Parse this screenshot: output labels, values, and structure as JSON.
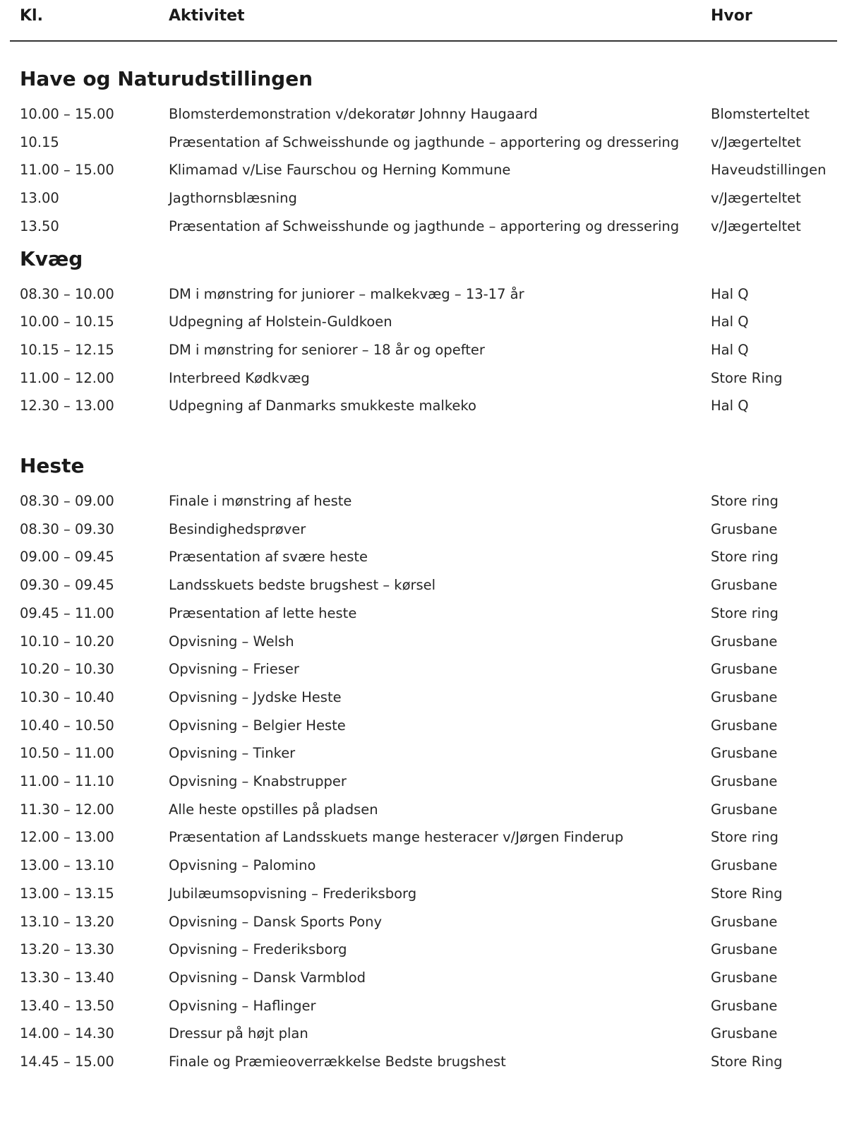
{
  "header": {
    "time": "Kl.",
    "activity": "Aktivitet",
    "where": "Hvor"
  },
  "sections": [
    {
      "title": "Have og Naturudstillingen",
      "rows": [
        {
          "time": "10.00 – 15.00",
          "activity": "Blomsterdemonstration v/dekoratør Johnny Haugaard",
          "where": "Blomsterteltet"
        },
        {
          "time": "10.15",
          "activity": "Præsentation af Schweisshunde og jagthunde – apportering og dressering",
          "where": "v/Jægerteltet"
        },
        {
          "time": "11.00 – 15.00",
          "activity": "Klimamad v/Lise Faurschou og Herning Kommune",
          "where": "Haveudstillingen"
        },
        {
          "time": "13.00",
          "activity": "Jagthornsblæsning",
          "where": "v/Jægerteltet"
        },
        {
          "time": "13.50",
          "activity": "Præsentation af Schweisshunde og jagthunde – apportering og dressering",
          "where": "v/Jægerteltet"
        }
      ]
    },
    {
      "title": "Kvæg",
      "rows": [
        {
          "time": "08.30 – 10.00",
          "activity": "DM i mønstring for juniorer – malkekvæg – 13-17 år",
          "where": "Hal Q"
        },
        {
          "time": "10.00 – 10.15",
          "activity": "Udpegning af Holstein-Guldkoen",
          "where": "Hal Q"
        },
        {
          "time": "10.15 – 12.15",
          "activity": "DM i mønstring for seniorer – 18 år og opefter",
          "where": "Hal Q"
        },
        {
          "time": "11.00 – 12.00",
          "activity": "Interbreed Kødkvæg",
          "where": "Store Ring"
        },
        {
          "time": "12.30 – 13.00",
          "activity": "Udpegning af Danmarks smukkeste malkeko",
          "where": "Hal Q"
        }
      ]
    },
    {
      "title": "Heste",
      "rows": [
        {
          "time": "08.30 – 09.00",
          "activity": "Finale i mønstring af heste",
          "where": "Store ring"
        },
        {
          "time": "08.30 – 09.30",
          "activity": "Besindighedsprøver",
          "where": "Grusbane"
        },
        {
          "time": "09.00 – 09.45",
          "activity": "Præsentation af svære heste",
          "where": "Store ring"
        },
        {
          "time": "09.30 – 09.45",
          "activity": "Landsskuets bedste brugshest – kørsel",
          "where": "Grusbane"
        },
        {
          "time": "09.45 – 11.00",
          "activity": "Præsentation af lette heste",
          "where": "Store ring"
        },
        {
          "time": "10.10 – 10.20",
          "activity": "Opvisning – Welsh",
          "where": "Grusbane"
        },
        {
          "time": "10.20 – 10.30",
          "activity": "Opvisning – Frieser",
          "where": "Grusbane"
        },
        {
          "time": "10.30 – 10.40",
          "activity": "Opvisning – Jydske Heste",
          "where": "Grusbane"
        },
        {
          "time": "10.40 – 10.50",
          "activity": "Opvisning – Belgier Heste",
          "where": "Grusbane"
        },
        {
          "time": "10.50 – 11.00",
          "activity": "Opvisning – Tinker",
          "where": "Grusbane"
        },
        {
          "time": "11.00 – 11.10",
          "activity": "Opvisning – Knabstrupper",
          "where": "Grusbane"
        },
        {
          "time": "11.30 – 12.00",
          "activity": "Alle heste opstilles på pladsen",
          "where": "Grusbane"
        },
        {
          "time": "12.00 – 13.00",
          "activity": "Præsentation af Landsskuets mange hesteracer v/Jørgen Finderup",
          "where": "Store ring"
        },
        {
          "time": "13.00 – 13.10",
          "activity": "Opvisning – Palomino",
          "where": "Grusbane"
        },
        {
          "time": "13.00 – 13.15",
          "activity": "Jubilæumsopvisning – Frederiksborg",
          "where": "Store Ring"
        },
        {
          "time": "13.10 – 13.20",
          "activity": "Opvisning – Dansk Sports Pony",
          "where": "Grusbane"
        },
        {
          "time": "13.20 – 13.30",
          "activity": "Opvisning – Frederiksborg",
          "where": "Grusbane"
        },
        {
          "time": "13.30 – 13.40",
          "activity": "Opvisning – Dansk Varmblod",
          "where": "Grusbane"
        },
        {
          "time": "13.40 – 13.50",
          "activity": "Opvisning – Haflinger",
          "where": "Grusbane"
        },
        {
          "time": "14.00 – 14.30",
          "activity": "Dressur på højt plan",
          "where": "Grusbane"
        },
        {
          "time": "14.45 – 15.00",
          "activity": "Finale og Præmieoverrækkelse Bedste brugshest",
          "where": "Store Ring"
        }
      ]
    }
  ]
}
